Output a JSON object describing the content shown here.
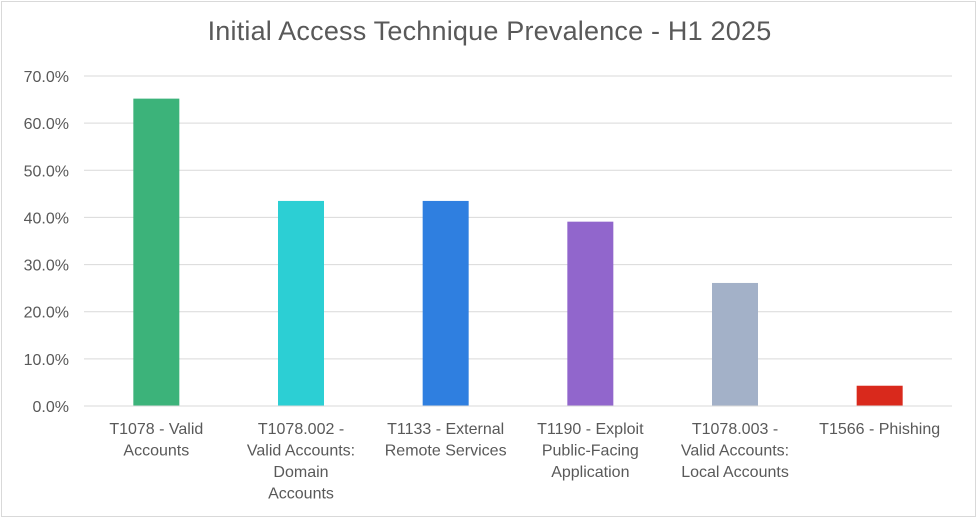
{
  "chart_data": {
    "type": "bar",
    "title": "Initial Access Technique Prevalence - H1 2025",
    "xlabel": "",
    "ylabel": "",
    "ylim": [
      0,
      70
    ],
    "y_tick_values": [
      0,
      10,
      20,
      30,
      40,
      50,
      60,
      70
    ],
    "y_tick_labels": [
      "0.0%",
      "10.0%",
      "20.0%",
      "30.0%",
      "40.0%",
      "50.0%",
      "60.0%",
      "70.0%"
    ],
    "grid": true,
    "legend": "none",
    "categories": [
      "T1078 - Valid Accounts",
      "T1078.002 - Valid Accounts: Domain Accounts",
      "T1133 - External Remote Services",
      "T1190 - Exploit Public-Facing Application",
      "T1078.003 - Valid Accounts: Local Accounts",
      "T1566 - Phishing"
    ],
    "category_label_lines": [
      [
        "T1078 - Valid",
        "Accounts"
      ],
      [
        "T1078.002 -",
        "Valid Accounts:",
        "Domain",
        "Accounts"
      ],
      [
        "T1133 - External",
        "Remote Services"
      ],
      [
        "T1190 - Exploit",
        "Public-Facing",
        "Application"
      ],
      [
        "T1078.003 -",
        "Valid Accounts:",
        "Local Accounts"
      ],
      [
        "T1566 - Phishing"
      ]
    ],
    "values": [
      65.2,
      43.5,
      43.5,
      39.1,
      26.1,
      4.3
    ],
    "colors": [
      "#3cb37a",
      "#2ccfd4",
      "#2f7fe0",
      "#9166cc",
      "#a3b1c8",
      "#d9291c"
    ],
    "grid_color": "#d9d9d9",
    "text_color": "#595959"
  }
}
